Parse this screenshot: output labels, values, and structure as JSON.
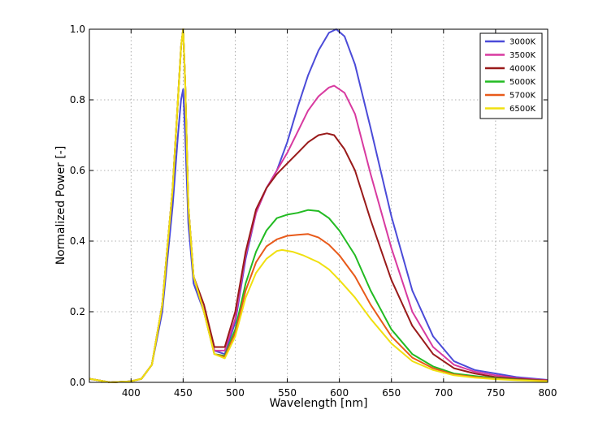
{
  "chart_data": {
    "type": "line",
    "title": "",
    "xlabel": "Wavelength [nm]",
    "ylabel": "Normalized Power [-]",
    "xlim": [
      360,
      800
    ],
    "ylim": [
      0,
      1.0
    ],
    "xticks": [
      400,
      450,
      500,
      550,
      600,
      650,
      700,
      750,
      800
    ],
    "xtick_labels": [
      "400",
      "450",
      "500",
      "550",
      "600",
      "650",
      "700",
      "750",
      "800"
    ],
    "yticks": [
      0.0,
      0.2,
      0.4,
      0.6,
      0.8,
      1.0
    ],
    "ytick_labels": [
      "0.0",
      "0.2",
      "0.4",
      "0.6",
      "0.8",
      "1.0"
    ],
    "grid": true,
    "legend_position": "top-right",
    "series": [
      {
        "name": "3000K",
        "color": "#4b4bd8",
        "points": [
          [
            360,
            0.01
          ],
          [
            380,
            0.0
          ],
          [
            400,
            0.003
          ],
          [
            410,
            0.01
          ],
          [
            420,
            0.05
          ],
          [
            430,
            0.2
          ],
          [
            440,
            0.5
          ],
          [
            445,
            0.7
          ],
          [
            448,
            0.8
          ],
          [
            450,
            0.83
          ],
          [
            452,
            0.7
          ],
          [
            455,
            0.45
          ],
          [
            460,
            0.28
          ],
          [
            470,
            0.2
          ],
          [
            480,
            0.09
          ],
          [
            490,
            0.08
          ],
          [
            500,
            0.17
          ],
          [
            510,
            0.35
          ],
          [
            520,
            0.48
          ],
          [
            530,
            0.55
          ],
          [
            540,
            0.6
          ],
          [
            550,
            0.68
          ],
          [
            560,
            0.78
          ],
          [
            570,
            0.87
          ],
          [
            580,
            0.94
          ],
          [
            590,
            0.99
          ],
          [
            597,
            1.0
          ],
          [
            605,
            0.98
          ],
          [
            615,
            0.9
          ],
          [
            630,
            0.72
          ],
          [
            650,
            0.47
          ],
          [
            670,
            0.26
          ],
          [
            690,
            0.13
          ],
          [
            710,
            0.06
          ],
          [
            730,
            0.035
          ],
          [
            750,
            0.025
          ],
          [
            770,
            0.015
          ],
          [
            800,
            0.007
          ]
        ]
      },
      {
        "name": "3500K",
        "color": "#d83aa0",
        "points": [
          [
            360,
            0.01
          ],
          [
            380,
            0.0
          ],
          [
            400,
            0.003
          ],
          [
            410,
            0.01
          ],
          [
            420,
            0.05
          ],
          [
            430,
            0.22
          ],
          [
            440,
            0.55
          ],
          [
            445,
            0.8
          ],
          [
            448,
            0.95
          ],
          [
            450,
            1.0
          ],
          [
            452,
            0.85
          ],
          [
            455,
            0.5
          ],
          [
            460,
            0.3
          ],
          [
            470,
            0.2
          ],
          [
            480,
            0.09
          ],
          [
            490,
            0.09
          ],
          [
            500,
            0.18
          ],
          [
            510,
            0.36
          ],
          [
            520,
            0.48
          ],
          [
            530,
            0.55
          ],
          [
            540,
            0.6
          ],
          [
            550,
            0.65
          ],
          [
            560,
            0.71
          ],
          [
            570,
            0.77
          ],
          [
            580,
            0.81
          ],
          [
            590,
            0.835
          ],
          [
            595,
            0.84
          ],
          [
            605,
            0.82
          ],
          [
            615,
            0.76
          ],
          [
            630,
            0.59
          ],
          [
            650,
            0.38
          ],
          [
            670,
            0.2
          ],
          [
            690,
            0.1
          ],
          [
            710,
            0.05
          ],
          [
            730,
            0.03
          ],
          [
            750,
            0.02
          ],
          [
            770,
            0.012
          ],
          [
            800,
            0.006
          ]
        ]
      },
      {
        "name": "4000K",
        "color": "#991a1a",
        "points": [
          [
            360,
            0.01
          ],
          [
            380,
            0.0
          ],
          [
            400,
            0.003
          ],
          [
            410,
            0.01
          ],
          [
            420,
            0.05
          ],
          [
            430,
            0.22
          ],
          [
            440,
            0.55
          ],
          [
            445,
            0.8
          ],
          [
            448,
            0.95
          ],
          [
            450,
            1.0
          ],
          [
            452,
            0.85
          ],
          [
            455,
            0.5
          ],
          [
            460,
            0.3
          ],
          [
            470,
            0.22
          ],
          [
            480,
            0.1
          ],
          [
            490,
            0.1
          ],
          [
            500,
            0.2
          ],
          [
            510,
            0.37
          ],
          [
            520,
            0.49
          ],
          [
            530,
            0.55
          ],
          [
            540,
            0.59
          ],
          [
            550,
            0.62
          ],
          [
            560,
            0.65
          ],
          [
            570,
            0.68
          ],
          [
            580,
            0.7
          ],
          [
            588,
            0.705
          ],
          [
            595,
            0.7
          ],
          [
            605,
            0.66
          ],
          [
            615,
            0.6
          ],
          [
            630,
            0.46
          ],
          [
            650,
            0.29
          ],
          [
            670,
            0.16
          ],
          [
            690,
            0.08
          ],
          [
            710,
            0.04
          ],
          [
            730,
            0.025
          ],
          [
            750,
            0.015
          ],
          [
            770,
            0.01
          ],
          [
            800,
            0.005
          ]
        ]
      },
      {
        "name": "5000K",
        "color": "#22bb22",
        "points": [
          [
            360,
            0.01
          ],
          [
            380,
            0.0
          ],
          [
            400,
            0.003
          ],
          [
            410,
            0.01
          ],
          [
            420,
            0.05
          ],
          [
            430,
            0.22
          ],
          [
            440,
            0.55
          ],
          [
            445,
            0.8
          ],
          [
            448,
            0.95
          ],
          [
            450,
            1.0
          ],
          [
            452,
            0.85
          ],
          [
            455,
            0.5
          ],
          [
            460,
            0.3
          ],
          [
            470,
            0.2
          ],
          [
            480,
            0.08
          ],
          [
            490,
            0.075
          ],
          [
            500,
            0.15
          ],
          [
            510,
            0.28
          ],
          [
            520,
            0.37
          ],
          [
            530,
            0.43
          ],
          [
            540,
            0.465
          ],
          [
            550,
            0.475
          ],
          [
            560,
            0.48
          ],
          [
            570,
            0.488
          ],
          [
            580,
            0.485
          ],
          [
            590,
            0.465
          ],
          [
            600,
            0.43
          ],
          [
            615,
            0.36
          ],
          [
            630,
            0.26
          ],
          [
            650,
            0.15
          ],
          [
            670,
            0.08
          ],
          [
            690,
            0.045
          ],
          [
            710,
            0.025
          ],
          [
            730,
            0.018
          ],
          [
            750,
            0.012
          ],
          [
            770,
            0.008
          ],
          [
            800,
            0.004
          ]
        ]
      },
      {
        "name": "5700K",
        "color": "#e85a1a",
        "points": [
          [
            360,
            0.01
          ],
          [
            380,
            0.0
          ],
          [
            400,
            0.003
          ],
          [
            410,
            0.01
          ],
          [
            420,
            0.05
          ],
          [
            430,
            0.22
          ],
          [
            440,
            0.55
          ],
          [
            445,
            0.8
          ],
          [
            448,
            0.95
          ],
          [
            450,
            1.0
          ],
          [
            452,
            0.85
          ],
          [
            455,
            0.5
          ],
          [
            460,
            0.3
          ],
          [
            470,
            0.2
          ],
          [
            480,
            0.08
          ],
          [
            490,
            0.072
          ],
          [
            500,
            0.14
          ],
          [
            510,
            0.26
          ],
          [
            520,
            0.34
          ],
          [
            530,
            0.385
          ],
          [
            540,
            0.405
          ],
          [
            550,
            0.415
          ],
          [
            560,
            0.418
          ],
          [
            570,
            0.42
          ],
          [
            580,
            0.41
          ],
          [
            590,
            0.39
          ],
          [
            600,
            0.36
          ],
          [
            615,
            0.3
          ],
          [
            630,
            0.22
          ],
          [
            650,
            0.13
          ],
          [
            670,
            0.07
          ],
          [
            690,
            0.04
          ],
          [
            710,
            0.022
          ],
          [
            730,
            0.015
          ],
          [
            750,
            0.01
          ],
          [
            770,
            0.007
          ],
          [
            800,
            0.004
          ]
        ]
      },
      {
        "name": "6500K",
        "color": "#f0e010",
        "points": [
          [
            360,
            0.01
          ],
          [
            380,
            0.0
          ],
          [
            400,
            0.003
          ],
          [
            410,
            0.01
          ],
          [
            420,
            0.05
          ],
          [
            430,
            0.22
          ],
          [
            440,
            0.55
          ],
          [
            445,
            0.8
          ],
          [
            448,
            0.95
          ],
          [
            450,
            1.0
          ],
          [
            452,
            0.85
          ],
          [
            455,
            0.5
          ],
          [
            460,
            0.3
          ],
          [
            470,
            0.2
          ],
          [
            480,
            0.08
          ],
          [
            490,
            0.068
          ],
          [
            500,
            0.13
          ],
          [
            510,
            0.24
          ],
          [
            520,
            0.31
          ],
          [
            530,
            0.35
          ],
          [
            540,
            0.372
          ],
          [
            545,
            0.375
          ],
          [
            555,
            0.37
          ],
          [
            565,
            0.36
          ],
          [
            580,
            0.34
          ],
          [
            590,
            0.32
          ],
          [
            600,
            0.29
          ],
          [
            615,
            0.24
          ],
          [
            630,
            0.18
          ],
          [
            650,
            0.11
          ],
          [
            670,
            0.06
          ],
          [
            690,
            0.035
          ],
          [
            710,
            0.02
          ],
          [
            730,
            0.013
          ],
          [
            750,
            0.009
          ],
          [
            770,
            0.006
          ],
          [
            800,
            0.003
          ]
        ]
      }
    ]
  }
}
